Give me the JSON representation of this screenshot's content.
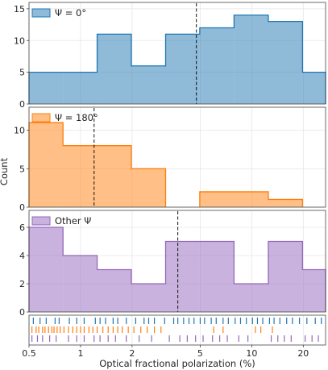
{
  "chart_data": {
    "type": "histogram",
    "xlabel": "Optical fractional polarization (%)",
    "ylabel": "Count",
    "x_scale": "log",
    "xlim": [
      0.5,
      27
    ],
    "x_ticks": [
      0.5,
      1,
      2,
      5,
      10,
      20
    ],
    "x_tick_labels": [
      "0.5",
      "1",
      "2",
      "5",
      "10",
      "20"
    ],
    "bin_edges": [
      0.5,
      0.79,
      1.25,
      1.98,
      3.14,
      4.97,
      7.88,
      12.5,
      19.8,
      27
    ],
    "panels": [
      {
        "name": "Ψ = 0°",
        "color": "#1f77b4",
        "counts": [
          5,
          5,
          11,
          6,
          11,
          12,
          14,
          13,
          5
        ],
        "median": 4.75,
        "ylim": [
          0,
          16
        ],
        "y_ticks": [
          0,
          5,
          10,
          15
        ]
      },
      {
        "name": "Ψ = 180°",
        "color": "#ff7f0e",
        "counts": [
          11,
          8,
          8,
          5,
          0,
          2,
          2,
          1,
          0
        ],
        "median": 1.2,
        "ylim": [
          0,
          13
        ],
        "y_ticks": [
          0,
          5,
          10
        ]
      },
      {
        "name": "Other Ψ",
        "color": "#9467bd",
        "counts": [
          6,
          4,
          3,
          2,
          5,
          5,
          2,
          5,
          3
        ],
        "median": 3.7,
        "ylim": [
          0,
          7.2
        ],
        "y_ticks": [
          0,
          2,
          4,
          6
        ]
      }
    ],
    "rug": {
      "Ψ = 0°": [
        0.53,
        0.58,
        0.63,
        0.71,
        0.75,
        0.86,
        0.95,
        1.05,
        1.22,
        1.3,
        1.4,
        1.55,
        1.65,
        1.85,
        2.1,
        2.35,
        2.5,
        2.7,
        3.1,
        3.5,
        3.7,
        4.0,
        4.3,
        4.6,
        5.0,
        5.3,
        5.8,
        6.2,
        6.8,
        7.3,
        8.0,
        8.6,
        9.3,
        10.1,
        10.8,
        11.6,
        12.7,
        13.5,
        14.6,
        16.0,
        17.3,
        19.0,
        21.0,
        23.5,
        25.5
      ],
      "Ψ = 180°": [
        0.52,
        0.55,
        0.57,
        0.6,
        0.62,
        0.65,
        0.68,
        0.7,
        0.73,
        0.76,
        0.8,
        0.85,
        0.9,
        0.95,
        1.0,
        1.05,
        1.12,
        1.18,
        1.25,
        1.35,
        1.45,
        1.55,
        1.65,
        1.75,
        1.9,
        2.05,
        2.25,
        2.45,
        2.7,
        2.95,
        6.0,
        6.8,
        10.5,
        11.3,
        13.2
      ],
      "Other Ψ": [
        0.52,
        0.56,
        0.6,
        0.66,
        0.72,
        0.85,
        0.95,
        1.05,
        1.2,
        1.3,
        1.45,
        1.6,
        1.85,
        2.2,
        2.6,
        3.3,
        3.8,
        4.2,
        4.7,
        5.2,
        5.9,
        6.5,
        7.2,
        8.4,
        9.5,
        13.0,
        14.2,
        15.5,
        17.0,
        20.5,
        22.5,
        24.5
      ]
    }
  }
}
